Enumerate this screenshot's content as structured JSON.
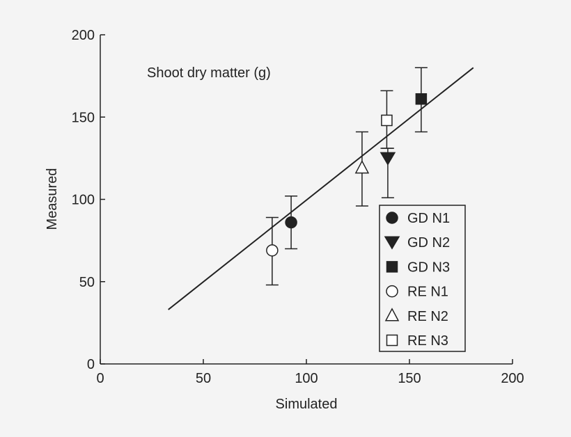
{
  "chart_data": {
    "type": "scatter",
    "annotation": "Shoot dry matter (g)",
    "xlabel": "Simulated",
    "ylabel": "Measured",
    "xlim": [
      0,
      200
    ],
    "ylim": [
      0,
      200
    ],
    "xticks": [
      "0",
      "50",
      "100",
      "150",
      "200"
    ],
    "yticks": [
      "0",
      "50",
      "100",
      "150",
      "200"
    ],
    "grid": false,
    "legend_position": "bottom-right",
    "series": [
      {
        "name": "GD N1",
        "marker": "filled-circle",
        "x": 92.6,
        "y": 86,
        "err_low": 70,
        "err_high": 102
      },
      {
        "name": "GD N2",
        "marker": "filled-down-triangle",
        "x": 139.5,
        "y": 125,
        "err_low": 101,
        "err_high": 131
      },
      {
        "name": "GD N3",
        "marker": "filled-square",
        "x": 155.7,
        "y": 161,
        "err_low": 141,
        "err_high": 180
      },
      {
        "name": "RE N1",
        "marker": "open-circle",
        "x": 83.4,
        "y": 69,
        "err_low": 48,
        "err_high": 89
      },
      {
        "name": "RE N2",
        "marker": "open-up-triangle",
        "x": 127,
        "y": 119,
        "err_low": 96,
        "err_high": 141
      },
      {
        "name": "RE N3",
        "marker": "open-square",
        "x": 139,
        "y": 148,
        "err_low": 131,
        "err_high": 166
      }
    ],
    "line": {
      "x": [
        33,
        181
      ],
      "y": [
        33,
        180
      ]
    },
    "colors": {
      "ink": "#222222",
      "background": "#f4f4f4"
    }
  }
}
